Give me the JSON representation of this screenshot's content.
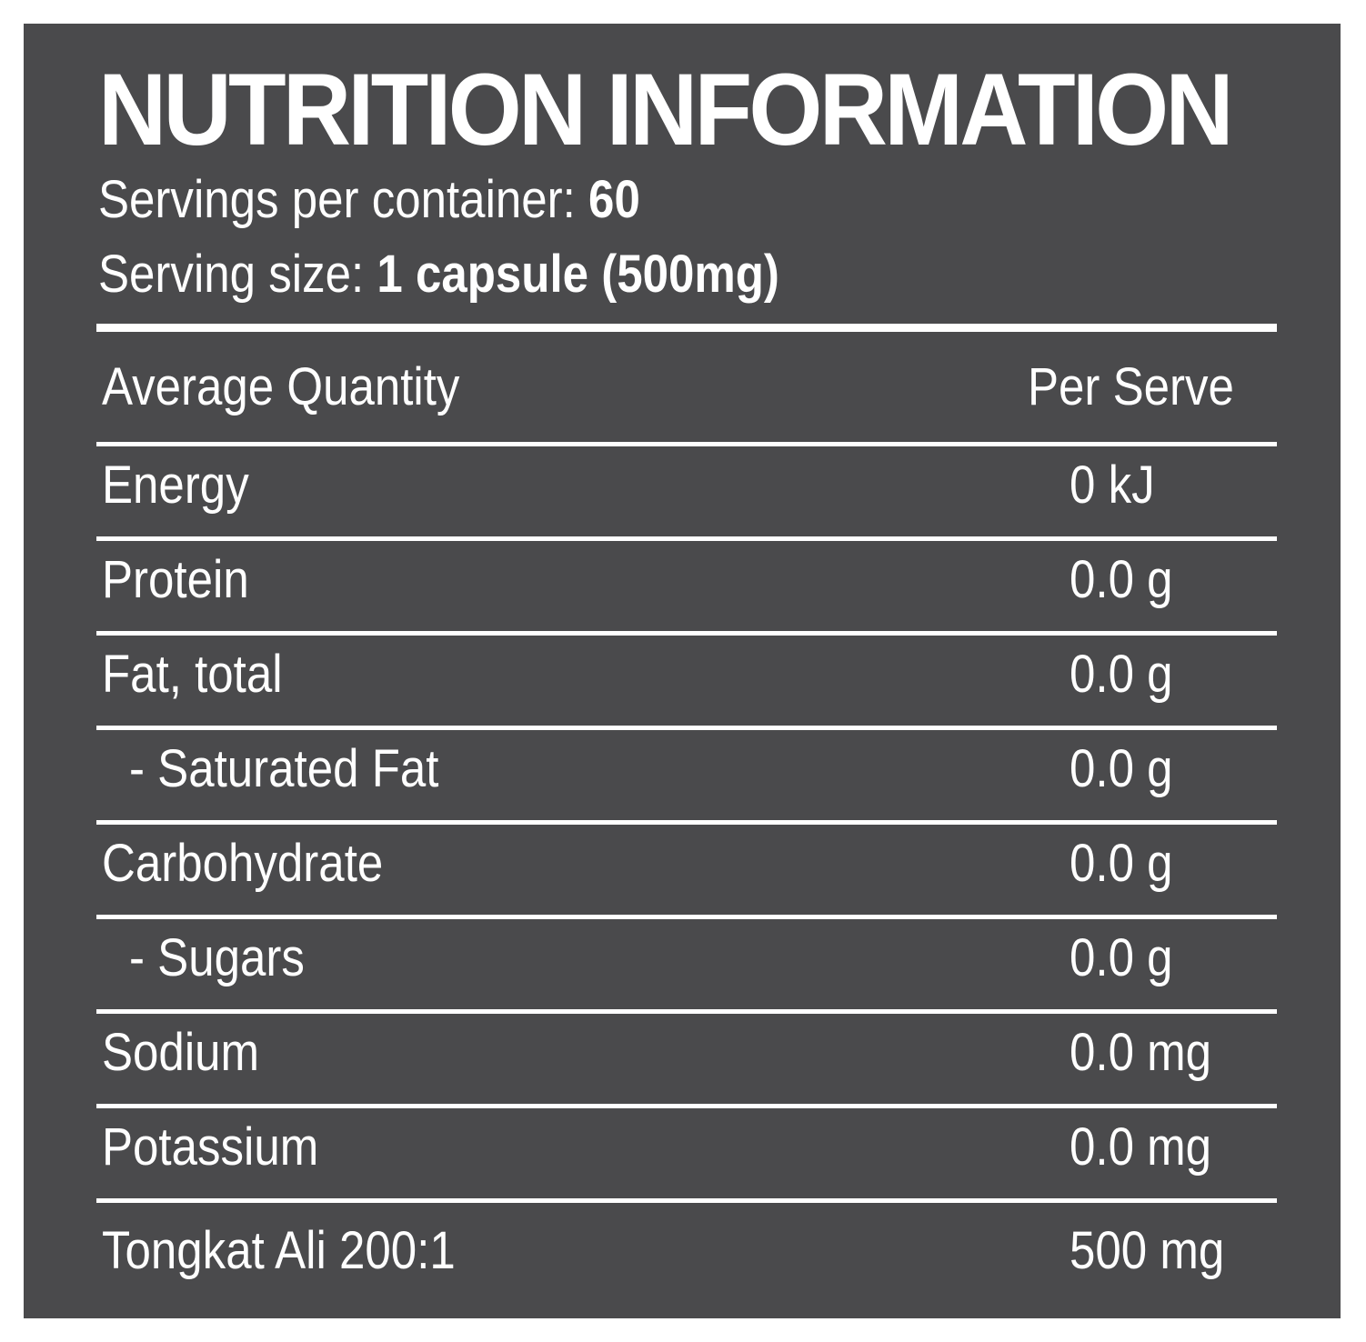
{
  "title": "NUTRITION INFORMATION",
  "servings": {
    "label": "Servings per container:",
    "value": "60"
  },
  "serving_size": {
    "label": "Serving size:",
    "value": "1 capsule (500mg)"
  },
  "table": {
    "header": [
      "Average Quantity",
      "Per Serve"
    ],
    "rows": [
      [
        "Energy",
        "0 kJ"
      ],
      [
        "Protein",
        "0.0 g"
      ],
      [
        "Fat, total",
        "0.0 g"
      ],
      [
        "- Saturated Fat",
        "0.0 g"
      ],
      [
        "Carbohydrate",
        "0.0 g"
      ],
      [
        "- Sugars",
        "0.0 g"
      ],
      [
        "Sodium",
        "0.0 mg"
      ],
      [
        "Potassium",
        "0.0 mg"
      ],
      [
        "Tongkat Ali 200:1",
        "500 mg"
      ]
    ]
  }
}
